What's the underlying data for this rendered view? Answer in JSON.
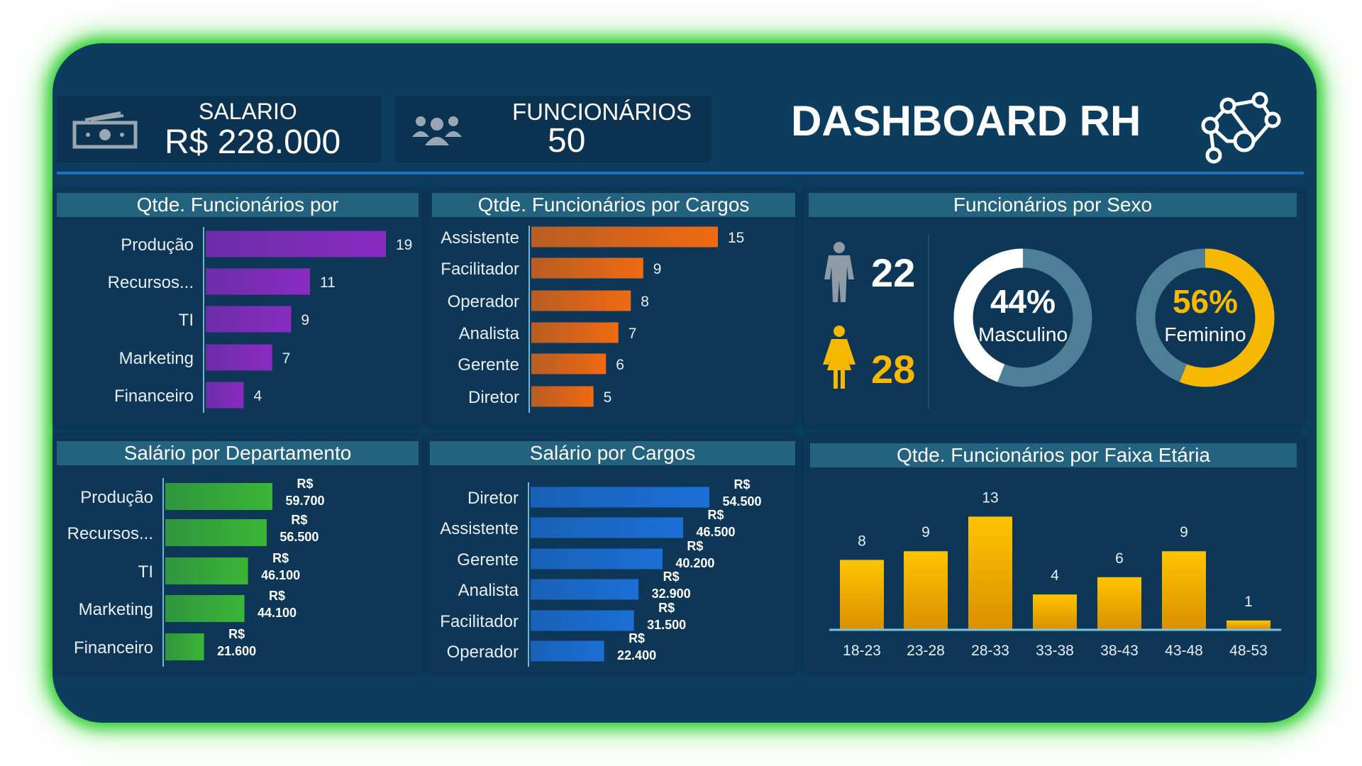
{
  "header": {
    "salary_label": "SALARIO",
    "salary_value": "R$ 228.000",
    "salary_icon": "money-icon",
    "employees_label": "FUNCIONÁRIOS",
    "employees_value": "50",
    "employees_icon": "people-group-icon",
    "title": "DASHBOARD RH",
    "title_icon": "network-people-icon"
  },
  "panels": {
    "dept_count": {
      "title": "Qtde. Funcionários por"
    },
    "role_count": {
      "title": "Qtde. Funcionários por Cargos"
    },
    "gender": {
      "title": "Funcionários por Sexo",
      "male_count": "22",
      "female_count": "28",
      "male_pct": "44%",
      "male_label": "Masculino",
      "female_pct": "56%",
      "female_label": "Feminino",
      "male_color": "#ffffff",
      "female_color": "#f6b800",
      "rest_color": "#4d7f96"
    },
    "dept_salary": {
      "title": "Salário por Departamento"
    },
    "role_salary": {
      "title": "Salário por Cargos"
    },
    "age": {
      "title": "Qtde. Funcionários por Faixa Etária"
    }
  },
  "chart_data": [
    {
      "type": "bar",
      "orientation": "horizontal",
      "categories": [
        "Produção",
        "Recursos...",
        "TI",
        "Marketing",
        "Financeiro"
      ],
      "values": [
        19,
        11,
        9,
        7,
        4
      ],
      "value_labels": [
        "19",
        "11",
        "9",
        "7",
        "4"
      ],
      "color": "#8a2bc2"
    },
    {
      "type": "bar",
      "orientation": "horizontal",
      "categories": [
        "Assistente",
        "Facilitador",
        "Operador",
        "Analista",
        "Gerente",
        "Diretor"
      ],
      "values": [
        15,
        9,
        8,
        7,
        6,
        5
      ],
      "value_labels": [
        "15",
        "9",
        "8",
        "7",
        "6",
        "5"
      ],
      "color": "#f06a12"
    },
    {
      "type": "pie",
      "categories": [
        "Masculino",
        "Feminino"
      ],
      "values": [
        44,
        56
      ],
      "donut": true
    },
    {
      "type": "bar",
      "orientation": "horizontal",
      "categories": [
        "Produção",
        "Recursos...",
        "TI",
        "Marketing",
        "Financeiro"
      ],
      "values": [
        59700,
        56500,
        46100,
        44100,
        21600
      ],
      "value_labels": [
        "59.700",
        "56.500",
        "46.100",
        "44.100",
        "21.600"
      ],
      "prefix": "R$",
      "color": "#3bb536"
    },
    {
      "type": "bar",
      "orientation": "horizontal",
      "categories": [
        "Diretor",
        "Assistente",
        "Gerente",
        "Analista",
        "Facilitador",
        "Operador"
      ],
      "values": [
        54500,
        46500,
        40200,
        32900,
        31500,
        22400
      ],
      "value_labels": [
        "54.500",
        "46.500",
        "40.200",
        "32.900",
        "31.500",
        "22.400"
      ],
      "prefix": "R$",
      "color": "#1c6fd6"
    },
    {
      "type": "bar",
      "orientation": "vertical",
      "categories": [
        "18-23",
        "23-28",
        "28-33",
        "33-38",
        "38-43",
        "43-48",
        "48-53"
      ],
      "values": [
        8,
        9,
        13,
        4,
        6,
        9,
        1
      ],
      "value_labels": [
        "8",
        "9",
        "13",
        "4",
        "6",
        "9",
        "1"
      ],
      "color": "#f6b800"
    }
  ]
}
